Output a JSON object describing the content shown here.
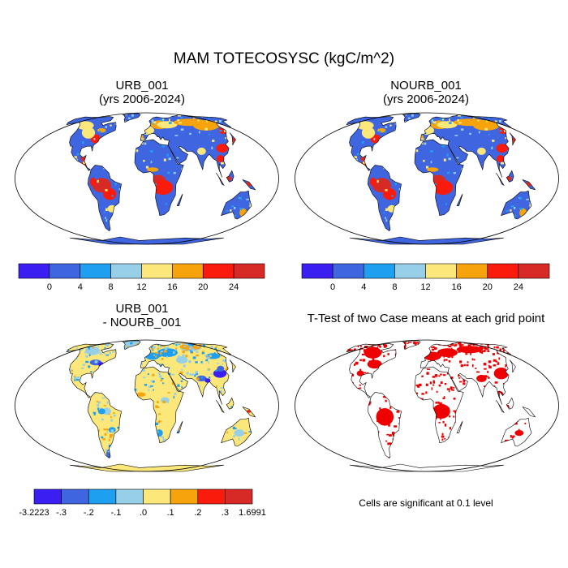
{
  "title": "MAM TOTECOSYSC (kgC/m^2)",
  "colors": {
    "abs_scale": [
      "#3b1ef2",
      "#3f66e0",
      "#1f9fef",
      "#97cfe8",
      "#fbe77a",
      "#f7a30b",
      "#fb1b0c",
      "#d72926"
    ],
    "diff_scale": [
      "#3b1ef2",
      "#3f66e0",
      "#1f9fef",
      "#97cfe8",
      "#fbe77a",
      "#f7a30b",
      "#fb1b0c",
      "#d72926"
    ],
    "significance": "#ee0000",
    "map_outline": "#000000"
  },
  "chart_data": [
    {
      "type": "heatmap",
      "panel": "top-left",
      "title": "URB_001",
      "subtitle": "(yrs 2006-2024)",
      "colorbar": {
        "tick_labels": [
          "0",
          "4",
          "8",
          "12",
          "16",
          "20",
          "24"
        ],
        "bins": 8
      }
    },
    {
      "type": "heatmap",
      "panel": "top-right",
      "title": "NOURB_001",
      "subtitle": "(yrs 2006-2024)",
      "colorbar": {
        "tick_labels": [
          "0",
          "4",
          "8",
          "12",
          "16",
          "20",
          "24"
        ],
        "bins": 8
      }
    },
    {
      "type": "heatmap",
      "panel": "bottom-left",
      "title": "URB_001",
      "subtitle": "- NOURB_001",
      "colorbar": {
        "tick_labels": [
          "-3.2223",
          "-.3",
          "-.2",
          "-.1",
          ".0",
          ".1",
          ".2",
          ".3",
          "1.6991"
        ],
        "bins": 8
      }
    },
    {
      "type": "heatmap",
      "panel": "bottom-right",
      "title": "T-Test of two Case means at each grid point",
      "footnote": "Cells are significant at 0.1 level"
    }
  ]
}
